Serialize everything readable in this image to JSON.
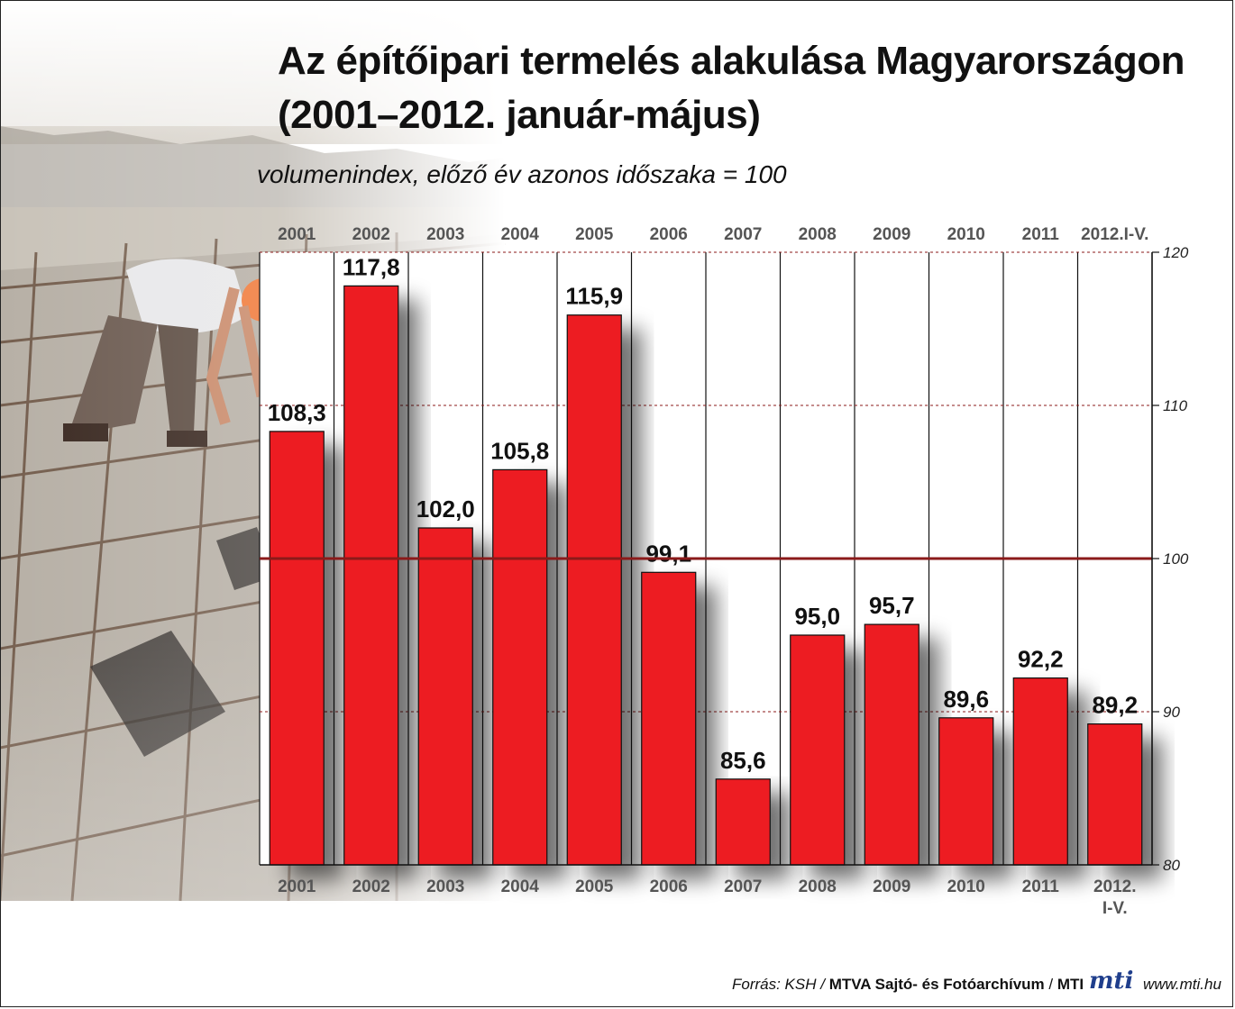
{
  "header": {
    "title_line1": "Az építőipari termelés alakulása Magyarországon",
    "title_line2": "(2001–2012. január-május)",
    "subtitle": "volumenindex, előző év azonos időszaka = 100"
  },
  "chart_data": {
    "type": "bar",
    "categories_top": [
      "2001",
      "2002",
      "2003",
      "2004",
      "2005",
      "2006",
      "2007",
      "2008",
      "2009",
      "2010",
      "2011",
      "2012.I-V."
    ],
    "categories_bottom": [
      [
        "2001"
      ],
      [
        "2002"
      ],
      [
        "2003"
      ],
      [
        "2004"
      ],
      [
        "2005"
      ],
      [
        "2006"
      ],
      [
        "2007"
      ],
      [
        "2008"
      ],
      [
        "2009"
      ],
      [
        "2010"
      ],
      [
        "2011"
      ],
      [
        "2012.",
        "I-V."
      ]
    ],
    "values": [
      108.3,
      117.8,
      102.0,
      105.8,
      115.9,
      99.1,
      85.6,
      95.0,
      95.7,
      89.6,
      92.2,
      89.2
    ],
    "value_labels": [
      "108,3",
      "117,8",
      "102,0",
      "105,8",
      "115,9",
      "99,1",
      "85,6",
      "95,0",
      "95,7",
      "89,6",
      "92,2",
      "89,2"
    ],
    "ylim": [
      80,
      120
    ],
    "yticks": [
      80,
      90,
      100,
      110,
      120
    ],
    "reference_line": 100,
    "bar_color": "#ed1c24",
    "reference_line_color": "#8b1a1a",
    "axis_position": "right"
  },
  "footer": {
    "source_prefix": "Forrás: KSH / ",
    "source_bold": "MTVA Sajtó- és Fotóarchívum",
    "source_sep": " / ",
    "source_bold2": "MTI",
    "logo": "mti",
    "url": "www.mti.hu"
  }
}
